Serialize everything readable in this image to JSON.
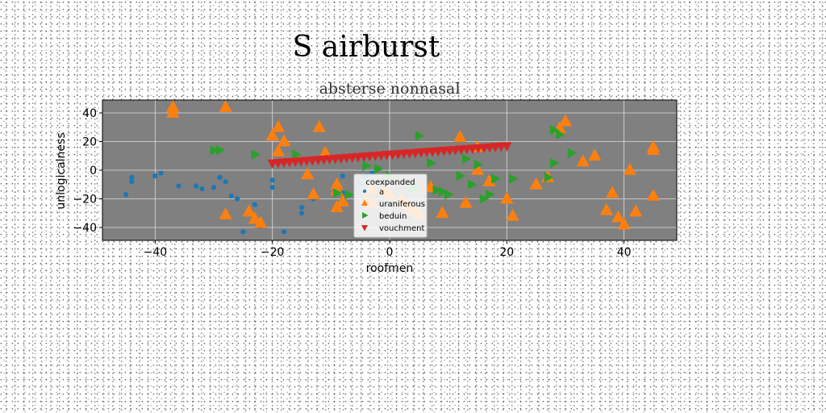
{
  "chart_data": {
    "type": "scatter",
    "suptitle": "S airburst",
    "title": "absterse nonnasal",
    "xlabel": "roofmen",
    "ylabel": "unlogicalness",
    "xlim": [
      -49,
      49
    ],
    "ylim": [
      -49,
      49
    ],
    "xticks": [
      -40,
      -20,
      0,
      20,
      40
    ],
    "yticks": [
      -40,
      -20,
      0,
      20,
      40
    ],
    "grid": true,
    "legend": {
      "title": "coexpanded",
      "placement": "lower-center"
    },
    "colors": {
      "plot_bg": "#808080",
      "grid": "#dddddd"
    },
    "series": [
      {
        "name": "a",
        "marker": "circle",
        "color": "#1f77b4",
        "points": [
          [
            -45,
            -17
          ],
          [
            -44,
            -5
          ],
          [
            -44,
            -8
          ],
          [
            -40,
            -4
          ],
          [
            -39,
            -2
          ],
          [
            -36,
            -11
          ],
          [
            -33,
            -11
          ],
          [
            -32,
            -13
          ],
          [
            -30,
            -12
          ],
          [
            -29,
            -5
          ],
          [
            -28,
            -8
          ],
          [
            -27,
            -18
          ],
          [
            -26,
            -20
          ],
          [
            -25,
            -43
          ],
          [
            -23,
            -24
          ],
          [
            -22,
            -39
          ],
          [
            -20,
            -7
          ],
          [
            -20,
            -12
          ],
          [
            -18,
            -43
          ],
          [
            -15,
            -26
          ],
          [
            -15,
            -30
          ],
          [
            -13,
            -20
          ],
          [
            -8,
            -4
          ],
          [
            -8,
            -16
          ],
          [
            -5,
            -9
          ],
          [
            -4,
            -4
          ],
          [
            -3,
            -2
          ]
        ]
      },
      {
        "name": "uraniferous",
        "marker": "triangle-up",
        "color": "#ff7f0e",
        "points": [
          [
            -37,
            44
          ],
          [
            -37,
            40
          ],
          [
            -28,
            44
          ],
          [
            -28,
            -31
          ],
          [
            -24,
            -29
          ],
          [
            -23,
            -34
          ],
          [
            -22,
            -37
          ],
          [
            -20,
            24
          ],
          [
            -19,
            30
          ],
          [
            -19,
            13
          ],
          [
            -18,
            20
          ],
          [
            -14,
            -3
          ],
          [
            -13,
            -17
          ],
          [
            -12,
            30
          ],
          [
            -11,
            12
          ],
          [
            -9,
            -10
          ],
          [
            -9,
            -14
          ],
          [
            -9,
            -26
          ],
          [
            -8,
            -22
          ],
          [
            -4,
            -20
          ],
          [
            -3,
            -23
          ],
          [
            -3,
            -13
          ],
          [
            -1,
            -14
          ],
          [
            0,
            -17
          ],
          [
            2,
            -21
          ],
          [
            3,
            -24
          ],
          [
            4,
            -28
          ],
          [
            5,
            -31
          ],
          [
            7,
            -12
          ],
          [
            9,
            -30
          ],
          [
            12,
            23
          ],
          [
            13,
            -23
          ],
          [
            15,
            16
          ],
          [
            15,
            0
          ],
          [
            17,
            -8
          ],
          [
            20,
            -20
          ],
          [
            21,
            -32
          ],
          [
            25,
            -10
          ],
          [
            27,
            -5
          ],
          [
            29,
            29
          ],
          [
            30,
            34
          ],
          [
            33,
            6
          ],
          [
            35,
            10
          ],
          [
            38,
            -16
          ],
          [
            37,
            -28
          ],
          [
            39,
            -33
          ],
          [
            40,
            -38
          ],
          [
            41,
            0
          ],
          [
            42,
            -29
          ],
          [
            45,
            14
          ],
          [
            45,
            16
          ],
          [
            45,
            -18
          ]
        ]
      },
      {
        "name": "beduin",
        "marker": "triangle-right",
        "color": "#2ca02c",
        "points": [
          [
            -30,
            14
          ],
          [
            -29,
            14
          ],
          [
            -23,
            11
          ],
          [
            -16,
            11
          ],
          [
            -9,
            -16
          ],
          [
            -7,
            -17
          ],
          [
            -4,
            3
          ],
          [
            -2,
            1
          ],
          [
            0,
            -4
          ],
          [
            4,
            -13
          ],
          [
            5,
            24
          ],
          [
            7,
            5
          ],
          [
            8,
            -14
          ],
          [
            9,
            -15
          ],
          [
            10,
            -17
          ],
          [
            12,
            -4
          ],
          [
            13,
            8
          ],
          [
            14,
            -10
          ],
          [
            15,
            4
          ],
          [
            16,
            -20
          ],
          [
            17,
            -17
          ],
          [
            18,
            -6
          ],
          [
            21,
            -6
          ],
          [
            27,
            -5
          ],
          [
            28,
            28
          ],
          [
            29,
            25
          ],
          [
            31,
            12
          ],
          [
            28,
            5
          ]
        ]
      },
      {
        "name": "vouchment",
        "marker": "triangle-down",
        "color": "#d62728",
        "line": {
          "x_from": -20,
          "x_to": 20,
          "y_from": 5,
          "y_to": 17,
          "count": 42
        }
      }
    ]
  }
}
